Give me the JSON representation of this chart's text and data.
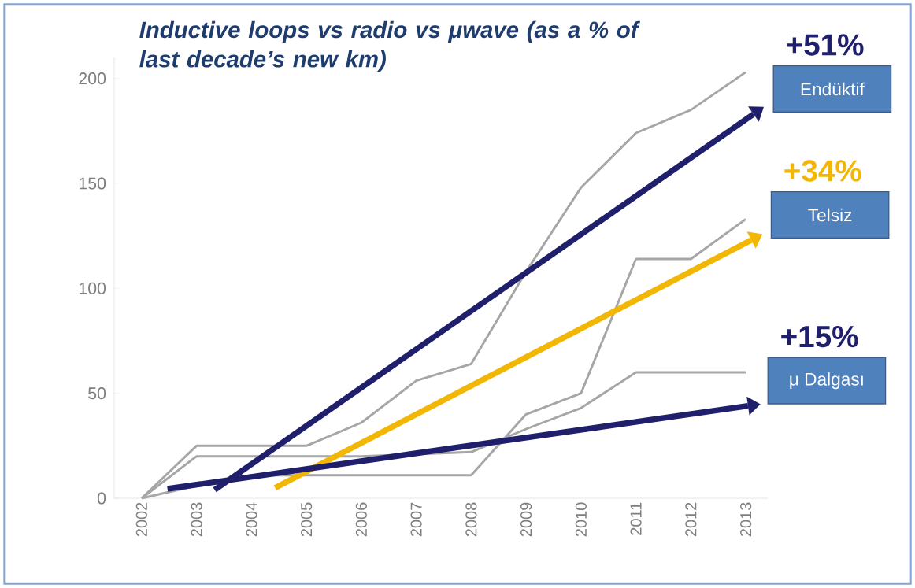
{
  "chart_data": {
    "type": "line",
    "title": "Inductive loops vs radio vs μwave (as a % of last decade’s new km)",
    "x": [
      2002,
      2003,
      2004,
      2005,
      2006,
      2007,
      2008,
      2009,
      2010,
      2011,
      2012,
      2013
    ],
    "series": [
      {
        "color": "#a6a6a6",
        "values": [
          0,
          25,
          25,
          25,
          36,
          56,
          64,
          108,
          148,
          174,
          185,
          203
        ]
      },
      {
        "color": "#a6a6a6",
        "values": [
          0,
          6,
          11,
          11,
          11,
          11,
          11,
          40,
          50,
          114,
          114,
          133
        ]
      },
      {
        "color": "#a6a6a6",
        "values": [
          0,
          20,
          20,
          20,
          20,
          21,
          22,
          33,
          43,
          60,
          60,
          60
        ]
      },
      {
        "name": "Endüktif",
        "color": "#1f1f6b",
        "x": [
          2003.33,
          2013.14
        ],
        "values": [
          4,
          183
        ]
      },
      {
        "name": "Telsiz",
        "color": "#f2b705",
        "x": [
          2004.43,
          2013.1
        ],
        "values": [
          5,
          123
        ]
      },
      {
        "name": "μ Dalgası",
        "color": "#1f1f6b",
        "x": [
          2002.47,
          2013.04
        ],
        "values": [
          4.5,
          44
        ]
      }
    ],
    "annotations": [
      {
        "text": "+51%",
        "x": 2013.14,
        "y": 183
      },
      {
        "text": "+34%",
        "x": 2013.1,
        "y": 123
      },
      {
        "text": "+15%",
        "x": 2013.04,
        "y": 44
      }
    ],
    "xlim": [
      2001.5,
      2013.4
    ],
    "ylim": [
      0,
      210
    ],
    "xticks": [
      2002,
      2003,
      2004,
      2005,
      2006,
      2007,
      2008,
      2009,
      2010,
      2011,
      2012,
      2013
    ],
    "yticks": [
      0,
      50,
      100,
      150,
      200
    ],
    "grid": false,
    "line_style": "solid"
  }
}
